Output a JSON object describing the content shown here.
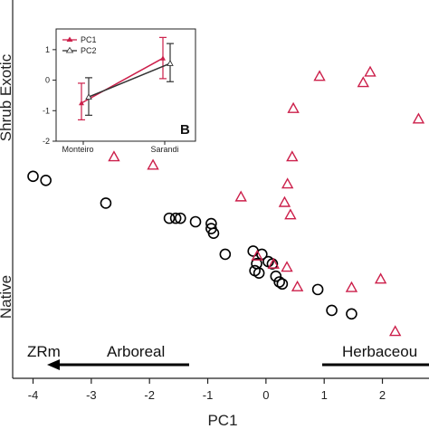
{
  "colors": {
    "native": "#000000",
    "exotic": "#cc1f4a",
    "pc1": "#cc1f4a",
    "pc2": "#333333",
    "axis": "#222222"
  },
  "labels": {
    "exotic": "Shrub Exotic",
    "native": "Native",
    "left_arrow_prefix": "ZRm",
    "left_arrow": "Arboreal",
    "right_arrow": "Herbaceou"
  },
  "chart_data": [
    {
      "type": "scatter",
      "xlabel": "PC1",
      "ylabel": "",
      "xlim": [
        -4.35,
        2.8
      ],
      "ylim": [
        -1.0,
        1.0
      ],
      "x_ticks": [
        -4,
        -3,
        -2,
        -1,
        0,
        1,
        2
      ],
      "x_tick_labels": [
        "-4",
        "-3",
        "-2",
        "-1",
        "0",
        "1",
        "2"
      ],
      "series": [
        {
          "marker": "circle",
          "points": [
            {
              "x": -4.0,
              "y": 0.094
            },
            {
              "x": -3.78,
              "y": 0.072
            },
            {
              "x": -2.75,
              "y": -0.051
            },
            {
              "x": -1.66,
              "y": -0.133
            },
            {
              "x": -1.55,
              "y": -0.133
            },
            {
              "x": -1.47,
              "y": -0.133
            },
            {
              "x": -1.21,
              "y": -0.152
            },
            {
              "x": -0.94,
              "y": -0.162
            },
            {
              "x": -0.94,
              "y": -0.189
            },
            {
              "x": -0.9,
              "y": -0.214
            },
            {
              "x": -0.7,
              "y": -0.328
            },
            {
              "x": -0.22,
              "y": -0.311
            },
            {
              "x": -0.16,
              "y": -0.379
            },
            {
              "x": -0.07,
              "y": -0.328
            },
            {
              "x": 0.04,
              "y": -0.368
            },
            {
              "x": 0.11,
              "y": -0.38
            },
            {
              "x": -0.19,
              "y": -0.417
            },
            {
              "x": -0.12,
              "y": -0.43
            },
            {
              "x": 0.17,
              "y": -0.447
            },
            {
              "x": 0.23,
              "y": -0.478
            },
            {
              "x": 0.28,
              "y": -0.489
            },
            {
              "x": 0.89,
              "y": -0.519
            },
            {
              "x": 1.13,
              "y": -0.632
            },
            {
              "x": 1.47,
              "y": -0.651
            }
          ]
        },
        {
          "marker": "triangle",
          "points": [
            {
              "x": 0.92,
              "y": 0.636
            },
            {
              "x": 1.67,
              "y": 0.602
            },
            {
              "x": 1.79,
              "y": 0.659
            },
            {
              "x": 2.62,
              "y": 0.405
            },
            {
              "x": 0.47,
              "y": 0.462
            },
            {
              "x": -2.61,
              "y": 0.2
            },
            {
              "x": -1.94,
              "y": 0.155
            },
            {
              "x": 0.45,
              "y": 0.2
            },
            {
              "x": 0.37,
              "y": 0.053
            },
            {
              "x": -0.43,
              "y": -0.017
            },
            {
              "x": 0.32,
              "y": -0.047
            },
            {
              "x": 0.42,
              "y": -0.114
            },
            {
              "x": -0.15,
              "y": -0.337
            },
            {
              "x": 0.13,
              "y": -0.381
            },
            {
              "x": 0.36,
              "y": -0.398
            },
            {
              "x": 0.54,
              "y": -0.504
            },
            {
              "x": 1.47,
              "y": -0.508
            },
            {
              "x": 1.97,
              "y": -0.462
            },
            {
              "x": 2.22,
              "y": -0.746
            }
          ]
        }
      ]
    },
    {
      "type": "line",
      "categories": [
        "Monteiro",
        "Sarandi"
      ],
      "ylim": [
        -2,
        1.5
      ],
      "y_ticks": [
        -2,
        -1,
        0,
        1
      ],
      "y_tick_labels": [
        "-2",
        "-1",
        "0",
        "1"
      ],
      "series": [
        {
          "name": "PC1",
          "values": [
            -0.75,
            0.72
          ],
          "error_low": [
            -1.3,
            0.05
          ],
          "error_high": [
            -0.1,
            1.4
          ]
        },
        {
          "name": "PC2",
          "values": [
            -0.55,
            0.55
          ],
          "error_low": [
            -1.15,
            -0.05
          ],
          "error_high": [
            0.08,
            1.2
          ]
        }
      ],
      "panel_letter": "B"
    }
  ]
}
